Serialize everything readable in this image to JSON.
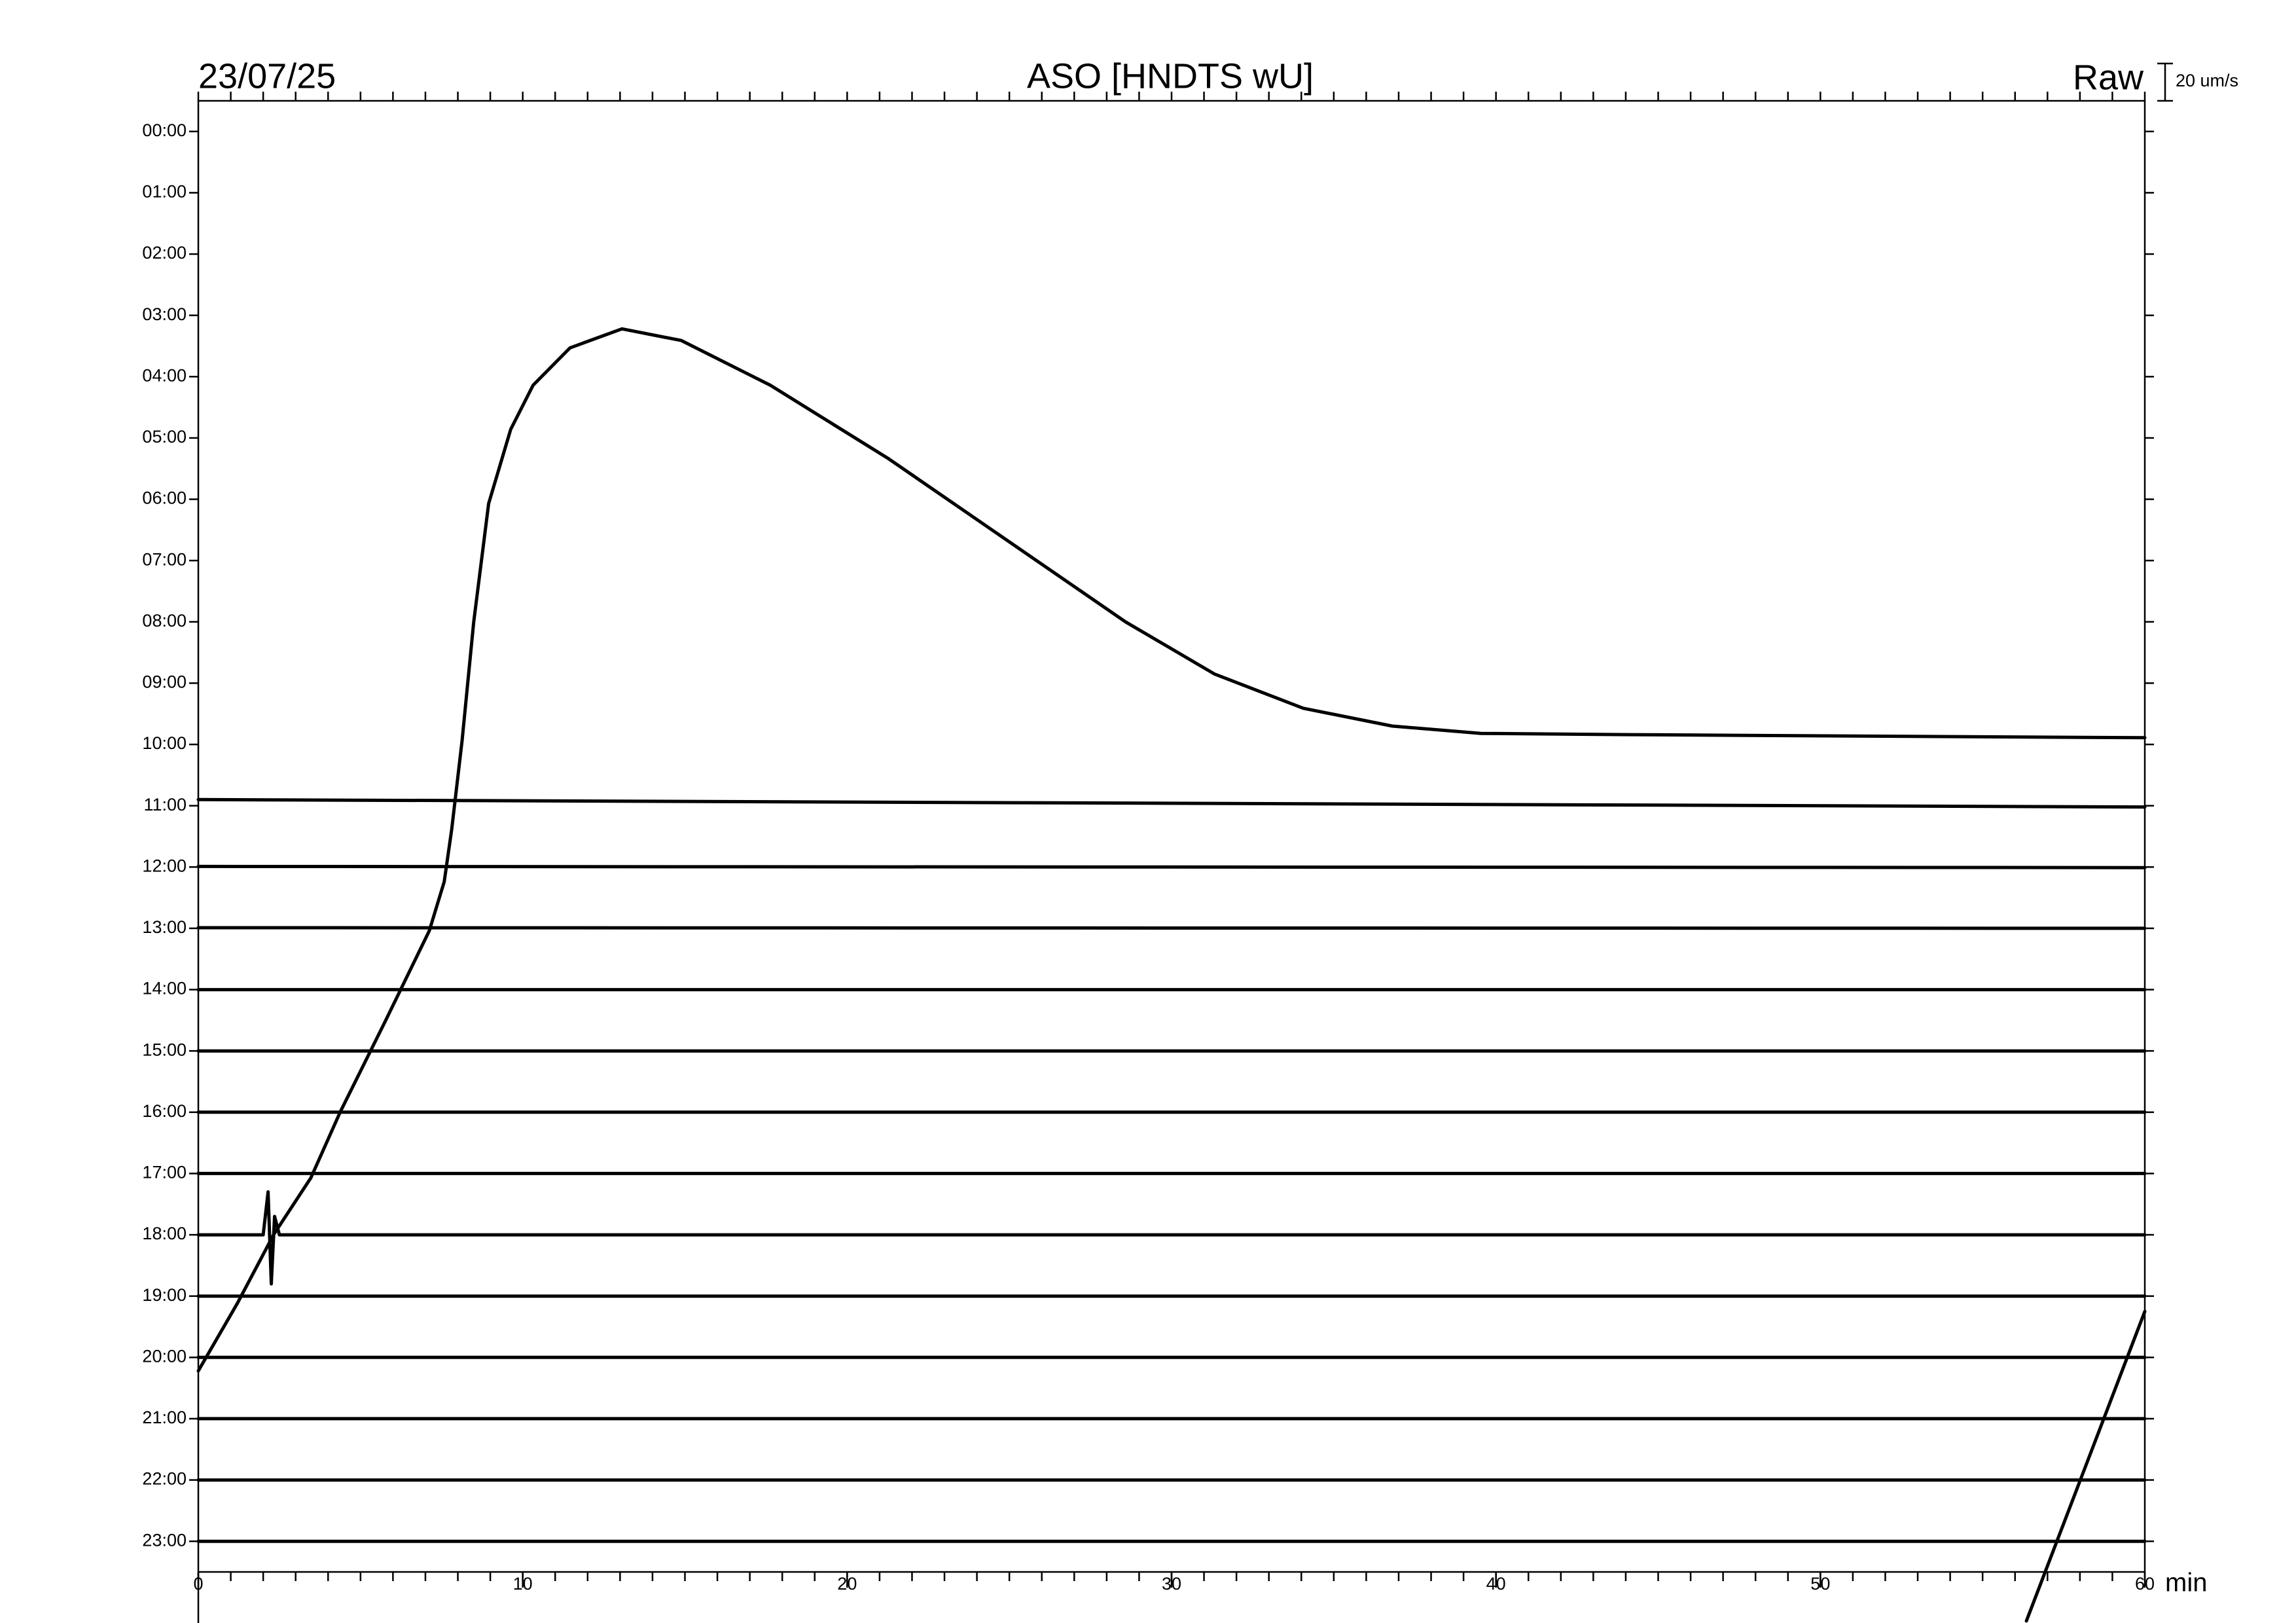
{
  "chart_data": {
    "type": "helicorder",
    "date": "23/07/25",
    "title": "ASO [HNDTS wU]",
    "mode_label": "Raw",
    "scale_label": "20 um/s",
    "x_label": "min",
    "xlim": [
      0,
      60
    ],
    "xticks": [
      0,
      10,
      20,
      30,
      40,
      50,
      60
    ],
    "xminorticks": [
      0,
      1,
      2,
      3,
      4,
      5,
      6,
      7,
      8,
      9,
      10,
      11,
      12,
      13,
      14,
      15,
      16,
      17,
      18,
      19,
      20,
      21,
      22,
      23,
      24,
      25,
      26,
      27,
      28,
      29,
      30,
      31,
      32,
      33,
      34,
      35,
      36,
      37,
      38,
      39,
      40,
      41,
      42,
      43,
      44,
      45,
      46,
      47,
      48,
      49,
      50,
      51,
      52,
      53,
      54,
      55,
      56,
      57,
      58,
      59,
      60
    ],
    "categories": [
      "00:00",
      "01:00",
      "02:00",
      "03:00",
      "04:00",
      "05:00",
      "06:00",
      "07:00",
      "08:00",
      "09:00",
      "10:00",
      "11:00",
      "12:00",
      "13:00",
      "14:00",
      "15:00",
      "16:00",
      "17:00",
      "18:00",
      "19:00",
      "20:00",
      "21:00",
      "22:00",
      "23:00"
    ],
    "series": [
      {
        "color": "#000000",
        "x": [
          0,
          1.19,
          2.33,
          3.47,
          4.38,
          5.75,
          7.12,
          7.58,
          7.81,
          8.13,
          8.49,
          8.95,
          9.63,
          10.32,
          11.46,
          13.06,
          14.89,
          17.63,
          21.28,
          24.93,
          28.58,
          31.32,
          34.06,
          36.8,
          39.54,
          44.11,
          53.24,
          60
        ],
        "values": [
          20.22,
          19.13,
          17.99,
          17.07,
          15.99,
          14.53,
          13.04,
          12.24,
          11.39,
          9.94,
          8.0,
          6.07,
          4.86,
          4.14,
          3.53,
          3.22,
          3.41,
          4.14,
          5.34,
          6.67,
          8.0,
          8.85,
          9.41,
          9.7,
          9.82,
          9.84,
          9.87,
          9.89
        ]
      },
      {
        "color": "#000000",
        "x": [
          0,
          60
        ],
        "values": [
          10.9,
          11.02
        ]
      },
      {
        "color": "#000000",
        "x": [
          0,
          60
        ],
        "values": [
          11.99,
          12.01
        ]
      },
      {
        "color": "#000000",
        "x": [
          0,
          60
        ],
        "values": [
          12.99,
          13.0
        ]
      },
      {
        "color": "#000000",
        "x": [
          0,
          60
        ],
        "values": [
          14.0,
          14.0
        ]
      },
      {
        "color": "#000000",
        "x": [
          0,
          60
        ],
        "values": [
          15.0,
          15.0
        ]
      },
      {
        "color": "#000000",
        "x": [
          0,
          60
        ],
        "values": [
          16.0,
          16.0
        ]
      },
      {
        "color": "#000000",
        "x": [
          0,
          60
        ],
        "values": [
          17.0,
          17.0
        ]
      },
      {
        "color": "#000000",
        "x": [
          0,
          2.0,
          2.15,
          2.25,
          2.35,
          2.5,
          60
        ],
        "values": [
          18.0,
          18.0,
          17.3,
          18.8,
          17.7,
          18.0,
          18.0
        ]
      },
      {
        "color": "#000000",
        "x": [
          0,
          60
        ],
        "values": [
          19.0,
          19.0
        ]
      },
      {
        "color": "#000000",
        "x": [
          0,
          60
        ],
        "values": [
          20.0,
          20.0
        ]
      },
      {
        "color": "#000000",
        "x": [
          0,
          60
        ],
        "values": [
          21.0,
          21.0
        ]
      },
      {
        "color": "#000000",
        "x": [
          0,
          60
        ],
        "values": [
          22.0,
          22.0
        ]
      },
      {
        "color": "#000000",
        "x": [
          0,
          60
        ],
        "values": [
          23.0,
          23.0
        ]
      },
      {
        "color": "#000000",
        "x": [
          56.35,
          60
        ],
        "values": [
          24.3,
          19.25
        ]
      }
    ]
  }
}
